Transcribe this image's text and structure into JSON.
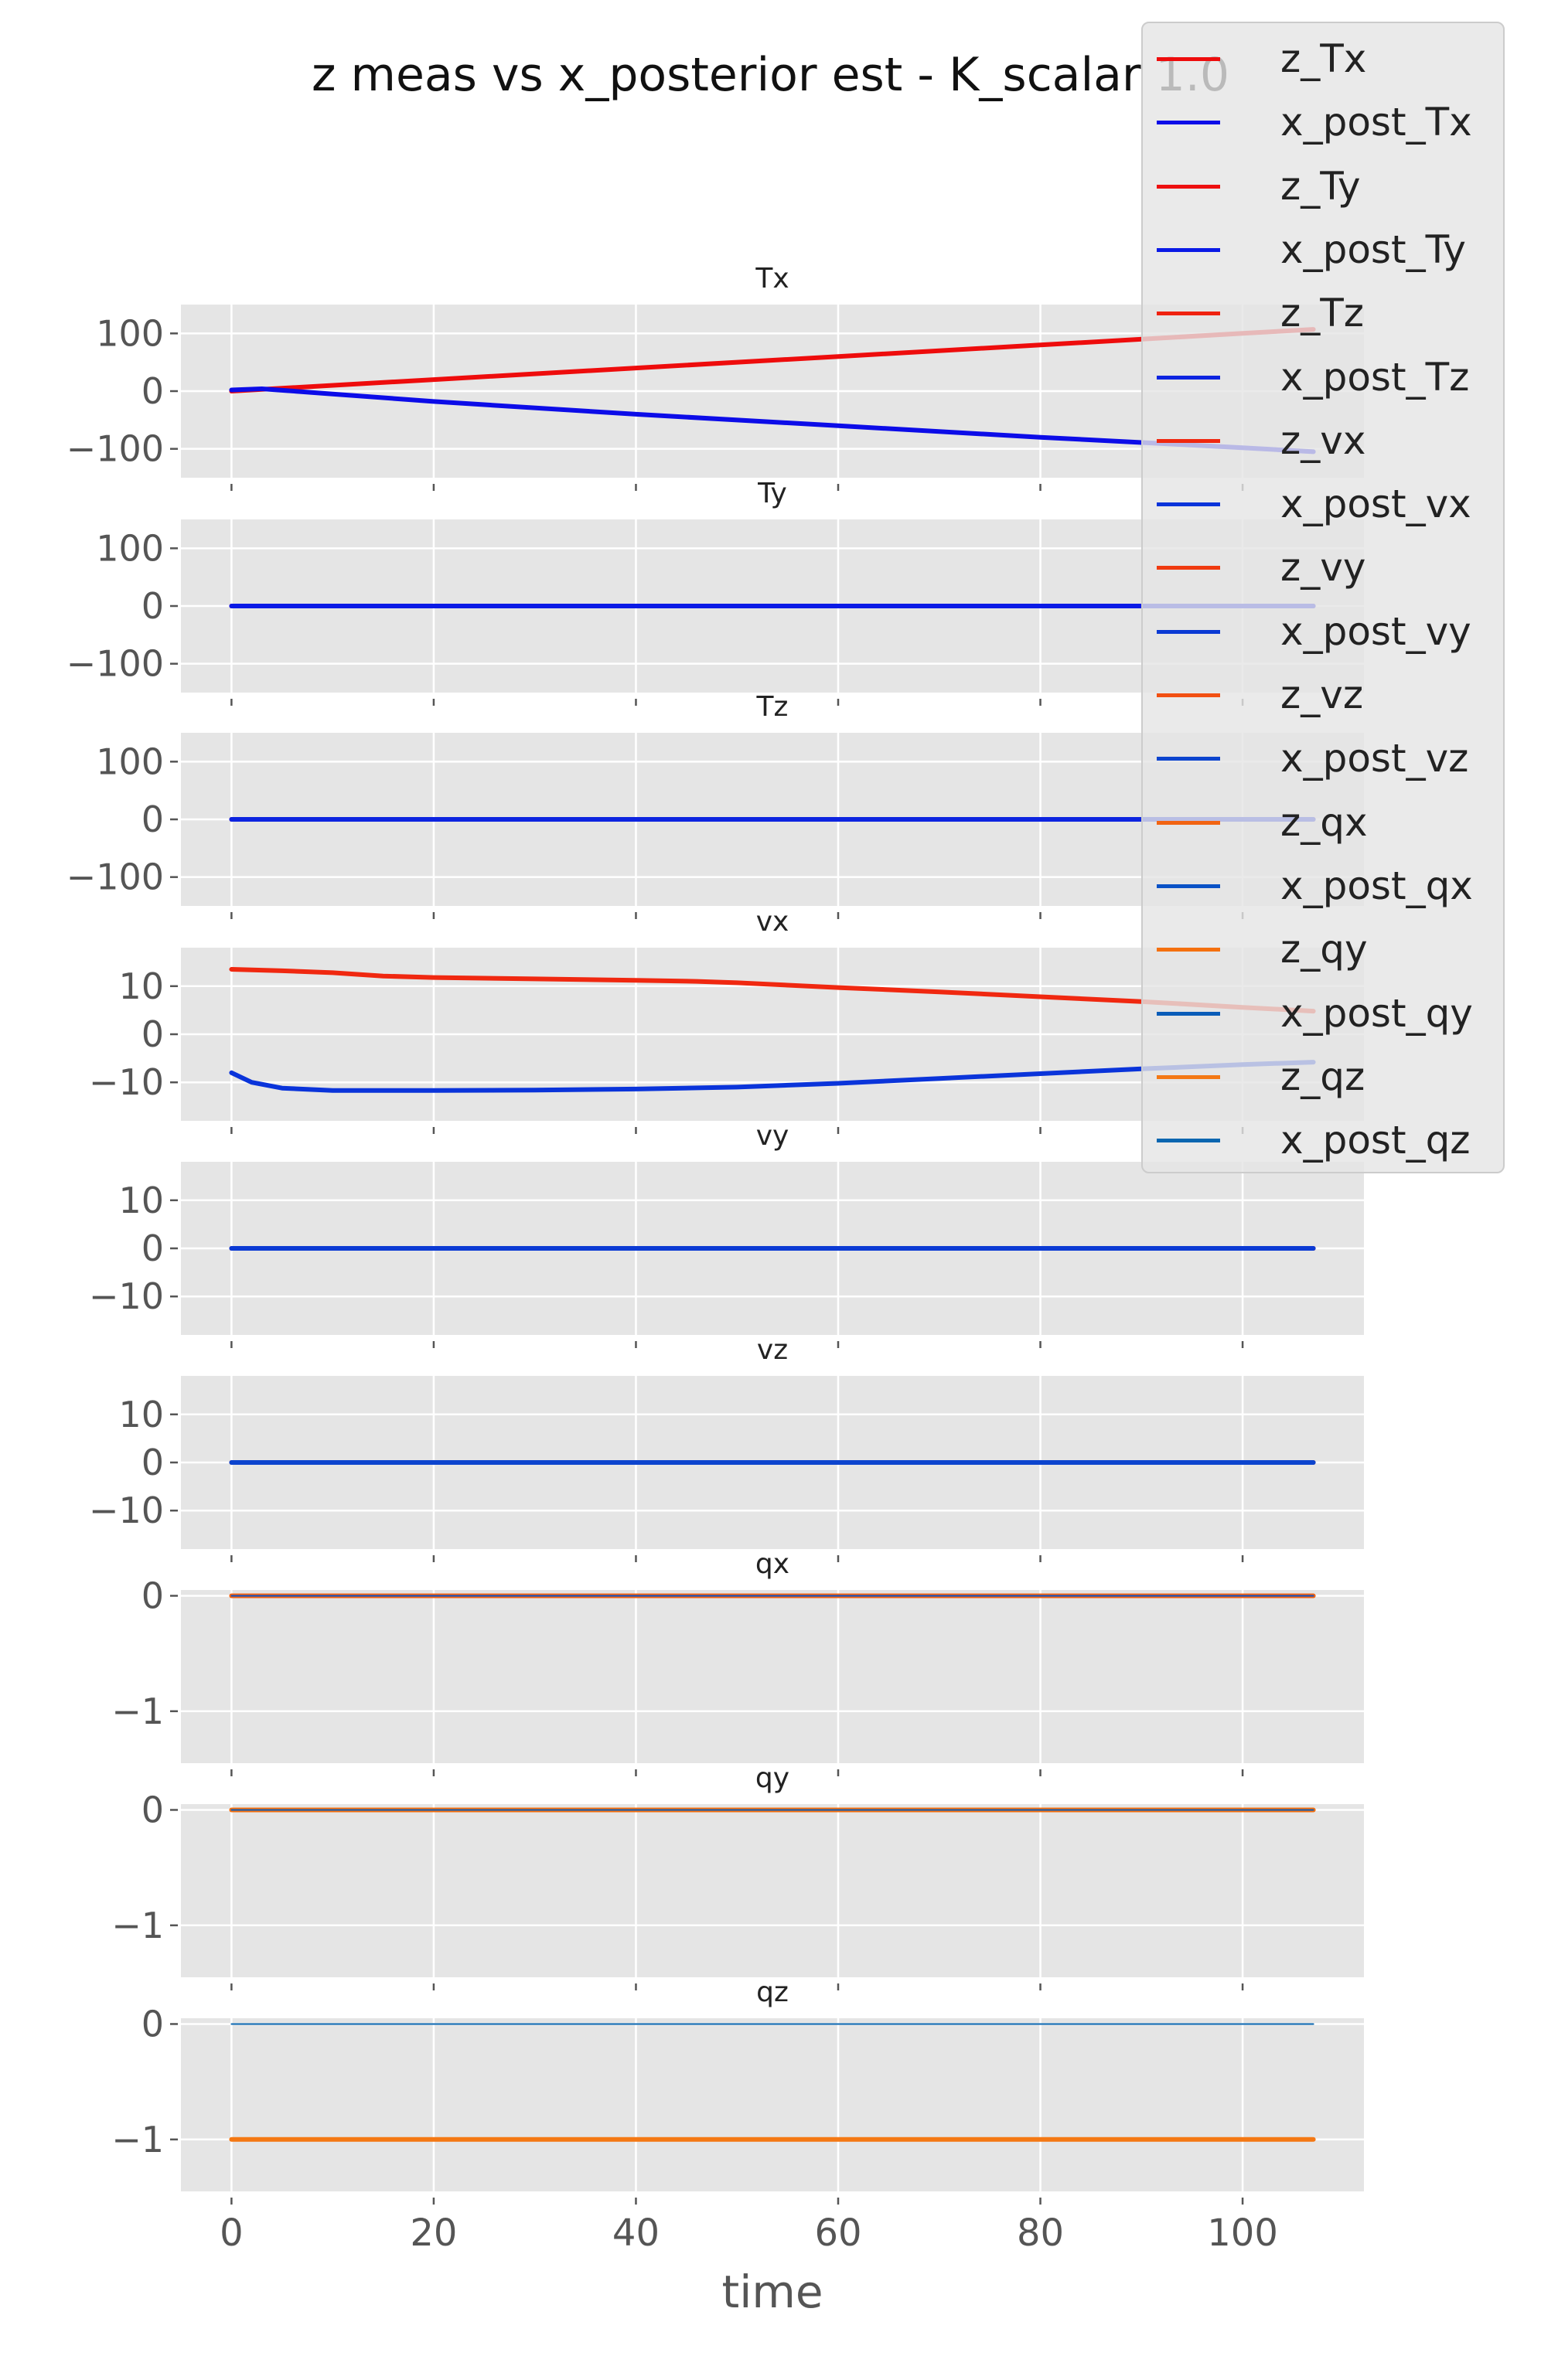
{
  "figure_title": "z meas vs x_posterior est - K_scalar 1.0",
  "xlabel": "time",
  "x_ticks": [
    0,
    20,
    40,
    60,
    80,
    100
  ],
  "colors": {
    "z_Tx": "#ee0c0c",
    "x_post_Tx": "#0c0ce8",
    "z_Ty": "#ee1010",
    "x_post_Ty": "#0a1ae6",
    "z_Tz": "#ef2210",
    "x_post_Tz": "#0d24e0",
    "z_vx": "#f02810",
    "x_post_vx": "#0a34da",
    "z_vy": "#f03a10",
    "x_post_vy": "#0b3ad4",
    "z_vz": "#f25012",
    "x_post_vz": "#0c44ce",
    "z_qx": "#f26412",
    "x_post_qx": "#0a52c6",
    "z_qy": "#f4700f",
    "x_post_qy": "#0a5cb8",
    "z_qz": "#f47814",
    "x_post_qz": "#0a66b0",
    "panel_bg": "#e5e5e5",
    "grid": "#ffffff"
  },
  "legend": {
    "entries": [
      "z_Tx",
      "x_post_Tx",
      "z_Ty",
      "x_post_Ty",
      "z_Tz",
      "x_post_Tz",
      "z_vx",
      "x_post_vx",
      "z_vy",
      "x_post_vy",
      "z_vz",
      "x_post_vz",
      "z_qx",
      "x_post_qx",
      "z_qy",
      "x_post_qy",
      "z_qz",
      "x_post_qz"
    ]
  },
  "chart_data": [
    {
      "type": "line",
      "title": "Tx",
      "ylim": [
        -150,
        150
      ],
      "yticks": [
        100,
        0,
        -100
      ],
      "ytick_labels": [
        "100",
        "0",
        "−100"
      ],
      "series": [
        {
          "name": "z_Tx",
          "points": [
            [
              0,
              0
            ],
            [
              20,
              20
            ],
            [
              40,
              40
            ],
            [
              60,
              60
            ],
            [
              80,
              80
            ],
            [
              100,
              100
            ],
            [
              107,
              107
            ]
          ]
        },
        {
          "name": "x_post_Tx",
          "points": [
            [
              0,
              2
            ],
            [
              3,
              4
            ],
            [
              10,
              -5
            ],
            [
              20,
              -18
            ],
            [
              40,
              -40
            ],
            [
              60,
              -60
            ],
            [
              80,
              -80
            ],
            [
              100,
              -98
            ],
            [
              107,
              -105
            ]
          ]
        }
      ]
    },
    {
      "type": "line",
      "title": "Ty",
      "ylim": [
        -150,
        150
      ],
      "yticks": [
        100,
        0,
        -100
      ],
      "ytick_labels": [
        "100",
        "0",
        "−100"
      ],
      "series": [
        {
          "name": "z_Ty",
          "points": [
            [
              0,
              0
            ],
            [
              107,
              0
            ]
          ]
        },
        {
          "name": "x_post_Ty",
          "points": [
            [
              0,
              0
            ],
            [
              107,
              0
            ]
          ]
        }
      ]
    },
    {
      "type": "line",
      "title": "Tz",
      "ylim": [
        -150,
        150
      ],
      "yticks": [
        100,
        0,
        -100
      ],
      "ytick_labels": [
        "100",
        "0",
        "−100"
      ],
      "series": [
        {
          "name": "z_Tz",
          "points": [
            [
              0,
              0
            ],
            [
              107,
              0
            ]
          ]
        },
        {
          "name": "x_post_Tz",
          "points": [
            [
              0,
              0
            ],
            [
              107,
              0
            ]
          ]
        }
      ]
    },
    {
      "type": "line",
      "title": "vx",
      "ylim": [
        -18,
        18
      ],
      "yticks": [
        10,
        0,
        -10
      ],
      "ytick_labels": [
        "10",
        "0",
        "−10"
      ],
      "series": [
        {
          "name": "z_vx",
          "points": [
            [
              0,
              13.5
            ],
            [
              5,
              13.2
            ],
            [
              10,
              12.8
            ],
            [
              15,
              12.1
            ],
            [
              20,
              11.8
            ],
            [
              30,
              11.5
            ],
            [
              40,
              11.2
            ],
            [
              46,
              11.0
            ],
            [
              50,
              10.7
            ],
            [
              60,
              9.7
            ],
            [
              70,
              8.8
            ],
            [
              80,
              7.8
            ],
            [
              90,
              6.8
            ],
            [
              100,
              5.6
            ],
            [
              107,
              4.8
            ]
          ]
        },
        {
          "name": "x_post_vx",
          "points": [
            [
              0,
              -8
            ],
            [
              2,
              -10
            ],
            [
              5,
              -11.2
            ],
            [
              10,
              -11.7
            ],
            [
              20,
              -11.7
            ],
            [
              30,
              -11.6
            ],
            [
              40,
              -11.4
            ],
            [
              50,
              -11
            ],
            [
              60,
              -10.2
            ],
            [
              70,
              -9.2
            ],
            [
              80,
              -8.2
            ],
            [
              90,
              -7.2
            ],
            [
              100,
              -6.3
            ],
            [
              107,
              -5.8
            ]
          ]
        }
      ]
    },
    {
      "type": "line",
      "title": "vy",
      "ylim": [
        -18,
        18
      ],
      "yticks": [
        10,
        0,
        -10
      ],
      "ytick_labels": [
        "10",
        "0",
        "−10"
      ],
      "series": [
        {
          "name": "z_vy",
          "points": [
            [
              0,
              0
            ],
            [
              107,
              0
            ]
          ]
        },
        {
          "name": "x_post_vy",
          "points": [
            [
              0,
              0
            ],
            [
              107,
              0
            ]
          ]
        }
      ]
    },
    {
      "type": "line",
      "title": "vz",
      "ylim": [
        -18,
        18
      ],
      "yticks": [
        10,
        0,
        -10
      ],
      "ytick_labels": [
        "10",
        "0",
        "−10"
      ],
      "series": [
        {
          "name": "z_vz",
          "points": [
            [
              0,
              0
            ],
            [
              107,
              0
            ]
          ]
        },
        {
          "name": "x_post_vz",
          "points": [
            [
              0,
              0
            ],
            [
              107,
              0
            ]
          ]
        }
      ]
    },
    {
      "type": "line",
      "title": "qx",
      "ylim": [
        -1.45,
        0.05
      ],
      "yticks": [
        0,
        -1
      ],
      "ytick_labels": [
        "0",
        "−1"
      ],
      "series": [
        {
          "name": "z_qx",
          "points": [
            [
              0,
              0
            ],
            [
              107,
              0
            ]
          ]
        },
        {
          "name": "x_post_qx",
          "points": [
            [
              0,
              0
            ],
            [
              107,
              0
            ]
          ]
        }
      ]
    },
    {
      "type": "line",
      "title": "qy",
      "ylim": [
        -1.45,
        0.05
      ],
      "yticks": [
        0,
        -1
      ],
      "ytick_labels": [
        "0",
        "−1"
      ],
      "series": [
        {
          "name": "z_qy",
          "points": [
            [
              0,
              0
            ],
            [
              107,
              0
            ]
          ]
        },
        {
          "name": "x_post_qy",
          "points": [
            [
              0,
              0
            ],
            [
              107,
              0
            ]
          ]
        }
      ]
    },
    {
      "type": "line",
      "title": "qz",
      "ylim": [
        -1.45,
        0.05
      ],
      "yticks": [
        0,
        -1
      ],
      "ytick_labels": [
        "0",
        "−1"
      ],
      "series": [
        {
          "name": "z_qz",
          "points": [
            [
              0,
              -1
            ],
            [
              107,
              -1
            ]
          ]
        },
        {
          "name": "x_post_qz",
          "points": [
            [
              0,
              0
            ],
            [
              107,
              0
            ]
          ]
        }
      ]
    }
  ]
}
